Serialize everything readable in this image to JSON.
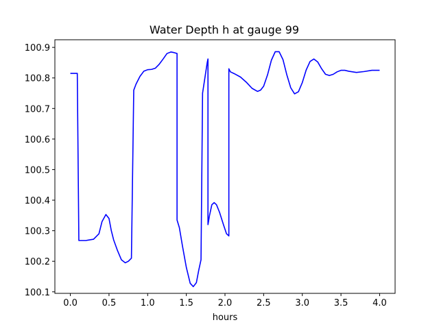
{
  "chart_data": {
    "type": "line",
    "title": "Water Depth h at gauge 99",
    "xlabel": "hours",
    "ylabel": "",
    "xlim": [
      -0.2,
      4.2
    ],
    "ylim": [
      100.095,
      100.925
    ],
    "xticks": [
      0.0,
      0.5,
      1.0,
      1.5,
      2.0,
      2.5,
      3.0,
      3.5,
      4.0
    ],
    "xtick_labels": [
      "0.0",
      "0.5",
      "1.0",
      "1.5",
      "2.0",
      "2.5",
      "3.0",
      "3.5",
      "4.0"
    ],
    "yticks": [
      100.1,
      100.2,
      100.3,
      100.4,
      100.5,
      100.6,
      100.7,
      100.8,
      100.9
    ],
    "ytick_labels": [
      "100.1",
      "100.2",
      "100.3",
      "100.4",
      "100.5",
      "100.6",
      "100.7",
      "100.8",
      "100.9"
    ],
    "grid": false,
    "series": [
      {
        "color": "#0000ff",
        "x": [
          0.0,
          0.09,
          0.09,
          0.11,
          0.2,
          0.3,
          0.37,
          0.41,
          0.46,
          0.5,
          0.53,
          0.56,
          0.61,
          0.66,
          0.71,
          0.75,
          0.79,
          0.82,
          0.82,
          0.85,
          0.9,
          0.95,
          1.0,
          1.05,
          1.1,
          1.15,
          1.2,
          1.25,
          1.3,
          1.34,
          1.38,
          1.38,
          1.41,
          1.45,
          1.5,
          1.55,
          1.59,
          1.63,
          1.66,
          1.69,
          1.71,
          1.71,
          1.74,
          1.77,
          1.78,
          1.78,
          1.8,
          1.83,
          1.86,
          1.89,
          1.93,
          1.98,
          2.02,
          2.05,
          2.05,
          2.07,
          2.12,
          2.2,
          2.28,
          2.35,
          2.42,
          2.46,
          2.5,
          2.55,
          2.6,
          2.65,
          2.7,
          2.75,
          2.8,
          2.85,
          2.9,
          2.95,
          3.0,
          3.05,
          3.1,
          3.15,
          3.2,
          3.25,
          3.3,
          3.35,
          3.4,
          3.45,
          3.5,
          3.55,
          3.6,
          3.7,
          3.8,
          3.9,
          4.0
        ],
        "y": [
          100.815,
          100.815,
          100.814,
          100.268,
          100.268,
          100.272,
          100.29,
          100.33,
          100.353,
          100.34,
          100.3,
          100.27,
          100.235,
          100.205,
          100.195,
          100.2,
          100.21,
          100.76,
          100.76,
          100.78,
          100.805,
          100.822,
          100.827,
          100.828,
          100.832,
          100.845,
          100.862,
          100.88,
          100.885,
          100.883,
          100.88,
          100.335,
          100.31,
          100.25,
          100.18,
          100.128,
          100.117,
          100.13,
          100.17,
          100.205,
          100.75,
          100.75,
          100.8,
          100.85,
          100.862,
          100.32,
          100.35,
          100.385,
          100.392,
          100.385,
          100.36,
          100.32,
          100.29,
          100.283,
          100.83,
          100.82,
          100.814,
          100.803,
          100.785,
          100.766,
          100.756,
          100.76,
          100.773,
          100.81,
          100.858,
          100.886,
          100.886,
          100.86,
          100.81,
          100.768,
          100.748,
          100.755,
          100.785,
          100.826,
          100.854,
          100.862,
          100.852,
          100.83,
          100.812,
          100.808,
          100.812,
          100.82,
          100.825,
          100.825,
          100.822,
          100.818,
          100.821,
          100.825,
          100.825
        ]
      }
    ]
  }
}
